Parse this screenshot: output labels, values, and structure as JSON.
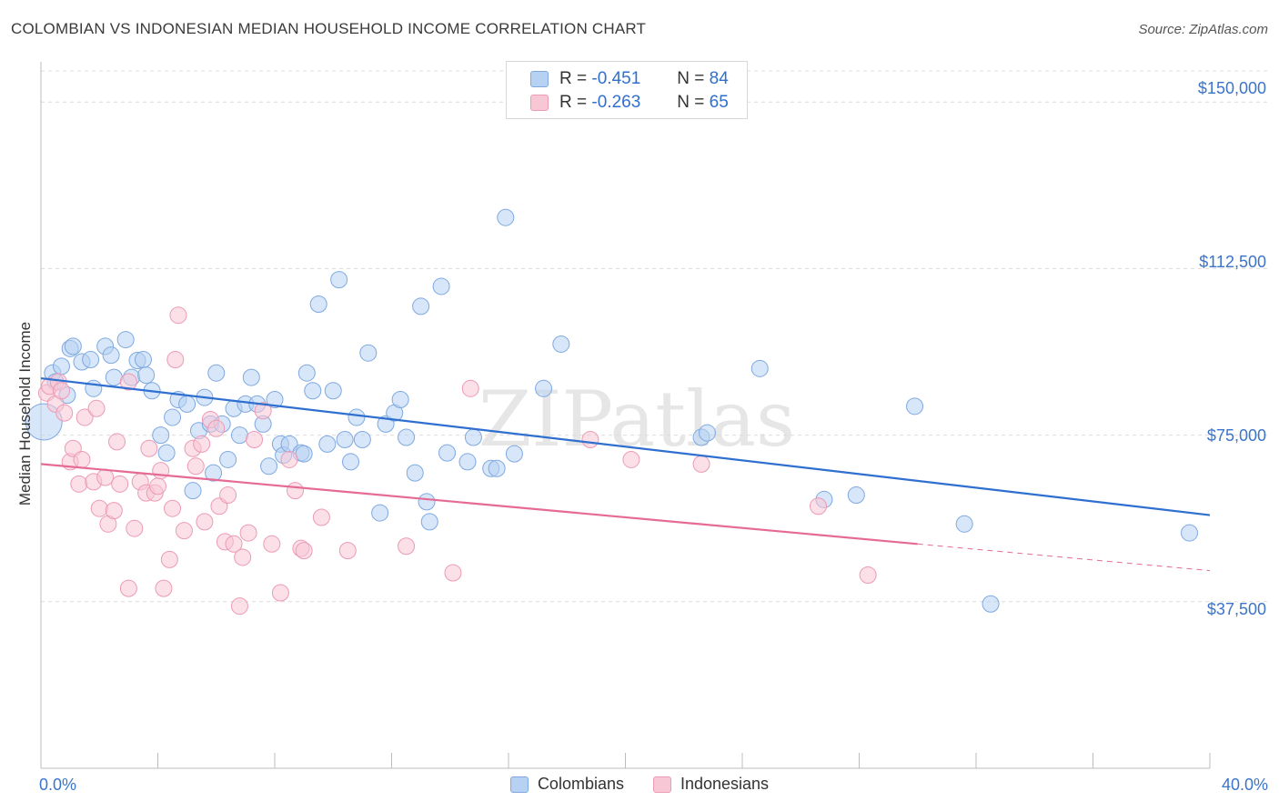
{
  "title": "COLOMBIAN VS INDONESIAN MEDIAN HOUSEHOLD INCOME CORRELATION CHART",
  "source": "Source: ZipAtlas.com",
  "watermark": "ZIPatlas",
  "legend_top": [
    {
      "r_label": "R =",
      "r_value": "-0.451",
      "n_label": "N =",
      "n_value": "84"
    },
    {
      "r_label": "R =",
      "r_value": "-0.263",
      "n_label": "N =",
      "n_value": "65"
    }
  ],
  "colors": {
    "blue_fill": "#b7d1f3",
    "blue_stroke": "#7fa9e0",
    "blue_line": "#2f6fd0",
    "pink_fill": "#f8c7d6",
    "pink_stroke": "#ec9ab5",
    "pink_line": "#e56b95",
    "tick_text": "#3b74c9",
    "grid": "#dcdcdc"
  },
  "chart_data": {
    "type": "scatter",
    "title": "COLOMBIAN VS INDONESIAN MEDIAN HOUSEHOLD INCOME CORRELATION CHART",
    "xlabel": "",
    "ylabel": "Median Household Income",
    "xlim": [
      0,
      40
    ],
    "ylim": [
      0,
      157000
    ],
    "x_tick_labels": [
      "0.0%",
      "40.0%"
    ],
    "y_ticks": [
      37500,
      75000,
      112500,
      150000
    ],
    "y_tick_labels": [
      "$37,500",
      "$75,000",
      "$112,500",
      "$150,000"
    ],
    "grid": true,
    "legend_position": "top-center",
    "series": [
      {
        "name": "Colombians",
        "r": -0.451,
        "n": 84,
        "trend": {
          "x0": 0.0,
          "y0": 87800,
          "x1": 40.0,
          "y1": 57000
        },
        "points": [
          [
            0.1,
            78000
          ],
          [
            0.4,
            89000
          ],
          [
            0.5,
            87000
          ],
          [
            0.7,
            90500
          ],
          [
            0.9,
            84000
          ],
          [
            1.0,
            94500
          ],
          [
            1.1,
            95000
          ],
          [
            1.4,
            91500
          ],
          [
            1.7,
            92000
          ],
          [
            1.8,
            85500
          ],
          [
            2.2,
            95000
          ],
          [
            2.4,
            93000
          ],
          [
            2.5,
            88000
          ],
          [
            2.9,
            96500
          ],
          [
            3.1,
            88000
          ],
          [
            3.3,
            91800
          ],
          [
            3.5,
            92000
          ],
          [
            3.6,
            88500
          ],
          [
            3.8,
            85000
          ],
          [
            4.1,
            75000
          ],
          [
            4.3,
            71000
          ],
          [
            4.5,
            79000
          ],
          [
            4.7,
            83000
          ],
          [
            5.0,
            82000
          ],
          [
            5.2,
            62500
          ],
          [
            5.4,
            76000
          ],
          [
            5.6,
            83500
          ],
          [
            5.8,
            77500
          ],
          [
            5.9,
            66500
          ],
          [
            6.0,
            89000
          ],
          [
            6.2,
            77500
          ],
          [
            6.4,
            69500
          ],
          [
            6.6,
            81000
          ],
          [
            6.8,
            75000
          ],
          [
            7.0,
            82000
          ],
          [
            7.2,
            88000
          ],
          [
            7.4,
            82000
          ],
          [
            7.6,
            77500
          ],
          [
            7.8,
            68000
          ],
          [
            8.0,
            83000
          ],
          [
            8.2,
            73000
          ],
          [
            8.3,
            70500
          ],
          [
            8.5,
            73000
          ],
          [
            8.9,
            71000
          ],
          [
            9.1,
            89000
          ],
          [
            9.3,
            85000
          ],
          [
            9.5,
            104500
          ],
          [
            9.8,
            73000
          ],
          [
            10.0,
            85000
          ],
          [
            10.2,
            110000
          ],
          [
            10.4,
            74000
          ],
          [
            10.6,
            69000
          ],
          [
            10.8,
            79000
          ],
          [
            11.0,
            74000
          ],
          [
            11.2,
            93500
          ],
          [
            11.6,
            57500
          ],
          [
            11.8,
            77500
          ],
          [
            12.1,
            80000
          ],
          [
            12.3,
            83000
          ],
          [
            12.5,
            74500
          ],
          [
            12.8,
            66500
          ],
          [
            13.0,
            104000
          ],
          [
            13.2,
            60000
          ],
          [
            13.3,
            55500
          ],
          [
            13.7,
            108500
          ],
          [
            13.9,
            71000
          ],
          [
            14.6,
            69000
          ],
          [
            14.8,
            74500
          ],
          [
            15.4,
            67500
          ],
          [
            15.6,
            67500
          ],
          [
            15.9,
            124000
          ],
          [
            16.2,
            70800
          ],
          [
            17.2,
            85500
          ],
          [
            17.8,
            95500
          ],
          [
            22.6,
            74500
          ],
          [
            22.8,
            75500
          ],
          [
            24.6,
            90000
          ],
          [
            26.8,
            60500
          ],
          [
            27.9,
            61500
          ],
          [
            29.9,
            81500
          ],
          [
            31.6,
            55000
          ],
          [
            32.5,
            37000
          ],
          [
            39.3,
            53000
          ],
          [
            9.0,
            70800
          ]
        ]
      },
      {
        "name": "Indonesians",
        "r": -0.263,
        "n": 65,
        "trend": {
          "x0": 0.0,
          "y0": 68500,
          "x1": 30.0,
          "y1": 50500
        },
        "trend_dashed_to": {
          "x": 40.0,
          "y": 44500
        },
        "points": [
          [
            0.2,
            84500
          ],
          [
            0.3,
            86000
          ],
          [
            0.5,
            82000
          ],
          [
            0.6,
            87000
          ],
          [
            0.7,
            85000
          ],
          [
            0.8,
            80000
          ],
          [
            1.0,
            69000
          ],
          [
            1.1,
            72000
          ],
          [
            1.3,
            64000
          ],
          [
            1.4,
            69500
          ],
          [
            1.5,
            79000
          ],
          [
            1.8,
            64500
          ],
          [
            1.9,
            81000
          ],
          [
            2.0,
            58500
          ],
          [
            2.2,
            65500
          ],
          [
            2.3,
            55000
          ],
          [
            2.5,
            58000
          ],
          [
            2.6,
            73500
          ],
          [
            2.7,
            64000
          ],
          [
            3.0,
            87000
          ],
          [
            3.0,
            40500
          ],
          [
            3.2,
            54000
          ],
          [
            3.4,
            64500
          ],
          [
            3.6,
            62000
          ],
          [
            3.7,
            72000
          ],
          [
            3.9,
            62000
          ],
          [
            4.0,
            63500
          ],
          [
            4.1,
            67000
          ],
          [
            4.2,
            40500
          ],
          [
            4.4,
            47000
          ],
          [
            4.5,
            58500
          ],
          [
            4.6,
            92000
          ],
          [
            4.7,
            102000
          ],
          [
            4.9,
            53500
          ],
          [
            5.2,
            72000
          ],
          [
            5.3,
            68000
          ],
          [
            5.5,
            73000
          ],
          [
            5.6,
            55500
          ],
          [
            5.8,
            78500
          ],
          [
            6.0,
            76500
          ],
          [
            6.1,
            59000
          ],
          [
            6.3,
            51000
          ],
          [
            6.4,
            61500
          ],
          [
            6.6,
            50500
          ],
          [
            6.8,
            36500
          ],
          [
            6.9,
            47500
          ],
          [
            7.1,
            53000
          ],
          [
            7.3,
            74000
          ],
          [
            7.6,
            80500
          ],
          [
            7.9,
            50500
          ],
          [
            8.2,
            39500
          ],
          [
            8.5,
            69500
          ],
          [
            8.7,
            62500
          ],
          [
            8.9,
            49500
          ],
          [
            9.0,
            49000
          ],
          [
            9.6,
            56500
          ],
          [
            10.5,
            49000
          ],
          [
            12.5,
            50000
          ],
          [
            14.1,
            44000
          ],
          [
            14.7,
            85500
          ],
          [
            18.8,
            74000
          ],
          [
            20.2,
            69500
          ],
          [
            22.6,
            68500
          ],
          [
            26.6,
            59000
          ],
          [
            28.3,
            43500
          ]
        ]
      }
    ]
  },
  "legend_bottom": [
    "Colombians",
    "Indonesians"
  ]
}
